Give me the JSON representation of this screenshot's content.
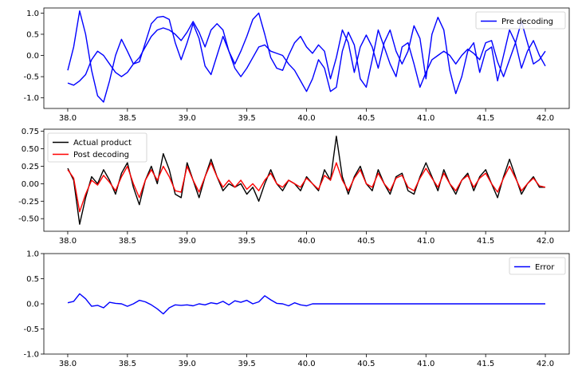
{
  "chart_data": [
    {
      "type": "line",
      "xlim": [
        37.8,
        42.2
      ],
      "ylim": [
        -1.25,
        1.12
      ],
      "xticks": [
        "38.0",
        "38.5",
        "39.0",
        "39.5",
        "40.0",
        "40.5",
        "41.0",
        "41.5",
        "42.0"
      ],
      "yticks": [
        "-1.0",
        "-0.5",
        "0.0",
        "0.5",
        "1.0"
      ],
      "ytick_values": [
        -1.0,
        -0.5,
        0.0,
        0.5,
        1.0
      ],
      "legend_position": "top-right",
      "series": [
        {
          "name": "Pre decoding",
          "color": "#0000ff",
          "x": [
            38.0,
            38.05,
            38.1,
            38.15,
            38.2,
            38.25,
            38.3,
            38.35,
            38.4,
            38.45,
            38.5,
            38.55,
            38.6,
            38.65,
            38.7,
            38.75,
            38.8,
            38.85,
            38.9,
            38.95,
            39.0,
            39.05,
            39.1,
            39.15,
            39.2,
            39.25,
            39.3,
            39.35,
            39.4,
            39.45,
            39.5,
            39.55,
            39.6,
            39.65,
            39.7,
            39.75,
            39.8,
            39.85,
            39.9,
            39.95,
            40.0,
            40.05,
            40.1,
            40.15,
            40.2,
            40.25,
            40.3,
            40.35,
            40.4,
            40.45,
            40.5,
            40.55,
            40.6,
            40.65,
            40.7,
            40.75,
            40.8,
            40.85,
            40.9,
            40.95,
            41.0,
            41.05,
            41.1,
            41.15,
            41.2,
            41.25,
            41.3,
            41.35,
            41.4,
            41.45,
            41.5,
            41.55,
            41.6,
            41.65,
            41.7,
            41.75,
            41.8,
            41.85,
            41.9,
            41.95,
            42.0
          ],
          "y": [
            -0.35,
            0.2,
            1.05,
            0.5,
            -0.35,
            -0.95,
            -1.1,
            -0.6,
            0.0,
            0.38,
            0.1,
            -0.2,
            -0.15,
            0.3,
            0.75,
            0.9,
            0.92,
            0.85,
            0.3,
            -0.1,
            0.3,
            0.75,
            0.4,
            -0.25,
            -0.45,
            0.0,
            0.45,
            0.1,
            -0.2,
            0.1,
            0.45,
            0.85,
            1.0,
            0.5,
            -0.05,
            -0.3,
            -0.35,
            0.0,
            0.3,
            0.45,
            0.2,
            0.05,
            0.25,
            0.1,
            -0.55,
            -0.05,
            0.6,
            0.3,
            -0.4,
            0.2,
            0.48,
            0.2,
            -0.3,
            0.3,
            0.6,
            0.1,
            -0.2,
            0.1,
            0.7,
            0.4,
            -0.55,
            0.5,
            0.9,
            0.6,
            -0.35,
            -0.9,
            -0.5,
            0.1,
            0.3,
            -0.4,
            0.1,
            0.2,
            -0.6,
            0.0,
            0.6,
            0.3,
            -0.3,
            0.1,
            0.35,
            0.0,
            -0.25
          ]
        },
        {
          "name": "",
          "color": "#0000ff",
          "x": [
            38.0,
            38.05,
            38.1,
            38.15,
            38.2,
            38.25,
            38.3,
            38.35,
            38.4,
            38.45,
            38.5,
            38.55,
            38.6,
            38.65,
            38.7,
            38.75,
            38.8,
            38.85,
            38.9,
            38.95,
            39.0,
            39.05,
            39.1,
            39.15,
            39.2,
            39.25,
            39.3,
            39.35,
            39.4,
            39.45,
            39.5,
            39.55,
            39.6,
            39.65,
            39.7,
            39.75,
            39.8,
            39.85,
            39.9,
            39.95,
            40.0,
            40.05,
            40.1,
            40.15,
            40.2,
            40.25,
            40.3,
            40.35,
            40.4,
            40.45,
            40.5,
            40.55,
            40.6,
            40.65,
            40.7,
            40.75,
            40.8,
            40.85,
            40.9,
            40.95,
            41.0,
            41.05,
            41.1,
            41.15,
            41.2,
            41.25,
            41.3,
            41.35,
            41.4,
            41.45,
            41.5,
            41.55,
            41.6,
            41.65,
            41.7,
            41.75,
            41.8,
            41.85,
            41.9,
            41.95,
            42.0
          ],
          "y": [
            -0.65,
            -0.7,
            -0.6,
            -0.45,
            -0.1,
            0.1,
            0.0,
            -0.2,
            -0.4,
            -0.5,
            -0.4,
            -0.2,
            -0.05,
            0.2,
            0.45,
            0.6,
            0.65,
            0.6,
            0.5,
            0.35,
            0.55,
            0.8,
            0.55,
            0.2,
            0.6,
            0.75,
            0.6,
            0.1,
            -0.3,
            -0.5,
            -0.3,
            -0.05,
            0.2,
            0.25,
            0.1,
            0.05,
            0.0,
            -0.2,
            -0.35,
            -0.6,
            -0.85,
            -0.55,
            -0.1,
            -0.3,
            -0.85,
            -0.75,
            0.1,
            0.55,
            0.25,
            -0.55,
            -0.75,
            -0.1,
            0.6,
            0.2,
            -0.2,
            -0.5,
            0.2,
            0.3,
            -0.2,
            -0.75,
            -0.4,
            -0.1,
            0.0,
            0.1,
            0.0,
            -0.2,
            0.0,
            0.15,
            0.05,
            -0.1,
            0.3,
            0.35,
            -0.15,
            -0.5,
            -0.1,
            0.3,
            0.8,
            0.3,
            -0.2,
            -0.1,
            0.1
          ]
        }
      ]
    },
    {
      "type": "line",
      "xlim": [
        37.8,
        42.2
      ],
      "ylim": [
        -0.68,
        0.78
      ],
      "xticks": [
        "38.0",
        "38.5",
        "39.0",
        "39.5",
        "40.0",
        "40.5",
        "41.0",
        "41.5",
        "42.0"
      ],
      "yticks": [
        "-0.50",
        "-0.25",
        "0.00",
        "0.25",
        "0.50",
        "0.75"
      ],
      "ytick_values": [
        -0.5,
        -0.25,
        0.0,
        0.25,
        0.5,
        0.75
      ],
      "legend_position": "top-left",
      "series": [
        {
          "name": "Actual product",
          "color": "#000000",
          "x": [
            38.0,
            38.05,
            38.1,
            38.15,
            38.2,
            38.25,
            38.3,
            38.35,
            38.4,
            38.45,
            38.5,
            38.55,
            38.6,
            38.65,
            38.7,
            38.75,
            38.8,
            38.85,
            38.9,
            38.95,
            39.0,
            39.05,
            39.1,
            39.15,
            39.2,
            39.25,
            39.3,
            39.35,
            39.4,
            39.45,
            39.5,
            39.55,
            39.6,
            39.65,
            39.7,
            39.75,
            39.8,
            39.85,
            39.9,
            39.95,
            40.0,
            40.05,
            40.1,
            40.15,
            40.2,
            40.25,
            40.3,
            40.35,
            40.4,
            40.45,
            40.5,
            40.55,
            40.6,
            40.65,
            40.7,
            40.75,
            40.8,
            40.85,
            40.9,
            40.95,
            41.0,
            41.05,
            41.1,
            41.15,
            41.2,
            41.25,
            41.3,
            41.35,
            41.4,
            41.45,
            41.5,
            41.55,
            41.6,
            41.65,
            41.7,
            41.75,
            41.8,
            41.85,
            41.9,
            41.95,
            42.0
          ],
          "y": [
            0.22,
            0.05,
            -0.58,
            -0.2,
            0.1,
            0.0,
            0.2,
            0.05,
            -0.15,
            0.15,
            0.3,
            -0.05,
            -0.3,
            0.05,
            0.25,
            0.0,
            0.43,
            0.2,
            -0.15,
            -0.2,
            0.3,
            0.05,
            -0.2,
            0.1,
            0.35,
            0.1,
            -0.1,
            0.0,
            -0.05,
            0.0,
            -0.15,
            -0.05,
            -0.25,
            0.0,
            0.2,
            0.0,
            -0.1,
            0.05,
            0.0,
            -0.1,
            0.1,
            0.0,
            -0.1,
            0.2,
            0.05,
            0.68,
            0.1,
            -0.15,
            0.1,
            0.25,
            0.0,
            -0.1,
            0.2,
            0.0,
            -0.15,
            0.1,
            0.15,
            -0.1,
            -0.15,
            0.1,
            0.3,
            0.1,
            -0.1,
            0.2,
            0.0,
            -0.15,
            0.05,
            0.15,
            -0.1,
            0.1,
            0.2,
            0.0,
            -0.2,
            0.1,
            0.35,
            0.1,
            -0.15,
            0.0,
            0.1,
            -0.05,
            -0.05
          ]
        },
        {
          "name": "Post decoding",
          "color": "#ff0000",
          "x": [
            38.0,
            38.05,
            38.1,
            38.15,
            38.2,
            38.25,
            38.3,
            38.35,
            38.4,
            38.45,
            38.5,
            38.55,
            38.6,
            38.65,
            38.7,
            38.75,
            38.8,
            38.85,
            38.9,
            38.95,
            39.0,
            39.05,
            39.1,
            39.15,
            39.2,
            39.25,
            39.3,
            39.35,
            39.4,
            39.45,
            39.5,
            39.55,
            39.6,
            39.65,
            39.7,
            39.75,
            39.8,
            39.85,
            39.9,
            39.95,
            40.0,
            40.05,
            40.1,
            40.15,
            40.2,
            40.25,
            40.3,
            40.35,
            40.4,
            40.45,
            40.5,
            40.55,
            40.6,
            40.65,
            40.7,
            40.75,
            40.8,
            40.85,
            40.9,
            40.95,
            41.0,
            41.05,
            41.1,
            41.15,
            41.2,
            41.25,
            41.3,
            41.35,
            41.4,
            41.45,
            41.5,
            41.55,
            41.6,
            41.65,
            41.7,
            41.75,
            41.8,
            41.85,
            41.9,
            41.95,
            42.0
          ],
          "y": [
            0.2,
            0.08,
            -0.4,
            -0.15,
            0.05,
            -0.02,
            0.12,
            0.02,
            -0.1,
            0.1,
            0.25,
            0.0,
            -0.2,
            0.05,
            0.2,
            0.05,
            0.25,
            0.1,
            -0.1,
            -0.12,
            0.25,
            0.05,
            -0.12,
            0.1,
            0.3,
            0.1,
            -0.05,
            0.05,
            -0.05,
            0.05,
            -0.08,
            0.0,
            -0.1,
            0.05,
            0.15,
            0.0,
            -0.05,
            0.05,
            0.0,
            -0.05,
            0.08,
            0.0,
            -0.08,
            0.12,
            0.05,
            0.3,
            0.05,
            -0.1,
            0.08,
            0.2,
            0.0,
            -0.05,
            0.15,
            0.0,
            -0.1,
            0.08,
            0.12,
            -0.05,
            -0.1,
            0.08,
            0.22,
            0.08,
            -0.05,
            0.15,
            0.0,
            -0.1,
            0.05,
            0.12,
            -0.05,
            0.08,
            0.15,
            0.0,
            -0.12,
            0.08,
            0.25,
            0.08,
            -0.1,
            0.0,
            0.08,
            -0.03,
            -0.05
          ]
        }
      ]
    },
    {
      "type": "line",
      "xlim": [
        37.8,
        42.2
      ],
      "ylim": [
        -1.0,
        1.0
      ],
      "xticks": [
        "38.0",
        "38.5",
        "39.0",
        "39.5",
        "40.0",
        "40.5",
        "41.0",
        "41.5",
        "42.0"
      ],
      "yticks": [
        "-1.0",
        "-0.5",
        "0.0",
        "0.5",
        "1.0"
      ],
      "ytick_values": [
        -1.0,
        -0.5,
        0.0,
        0.5,
        1.0
      ],
      "legend_position": "top-right",
      "series": [
        {
          "name": "Error",
          "color": "#0000ff",
          "x": [
            38.0,
            38.05,
            38.1,
            38.15,
            38.2,
            38.25,
            38.3,
            38.35,
            38.4,
            38.45,
            38.5,
            38.55,
            38.6,
            38.65,
            38.7,
            38.75,
            38.8,
            38.85,
            38.9,
            38.95,
            39.0,
            39.05,
            39.1,
            39.15,
            39.2,
            39.25,
            39.3,
            39.35,
            39.4,
            39.45,
            39.5,
            39.55,
            39.6,
            39.65,
            39.7,
            39.75,
            39.8,
            39.85,
            39.9,
            39.95,
            40.0,
            40.05,
            40.1,
            40.5,
            41.0,
            41.5,
            42.0
          ],
          "y": [
            0.02,
            0.05,
            0.2,
            0.1,
            -0.05,
            -0.03,
            -0.08,
            0.03,
            0.01,
            0.0,
            -0.05,
            0.0,
            0.07,
            0.04,
            -0.02,
            -0.1,
            -0.2,
            -0.08,
            -0.02,
            -0.03,
            -0.02,
            -0.04,
            0.0,
            -0.02,
            0.02,
            0.0,
            0.05,
            -0.02,
            0.06,
            0.03,
            0.07,
            0.0,
            0.04,
            0.16,
            0.08,
            0.01,
            0.0,
            -0.04,
            0.02,
            -0.02,
            -0.04,
            0.0,
            0.0,
            0.0,
            0.0,
            0.0,
            0.0
          ]
        }
      ]
    }
  ]
}
